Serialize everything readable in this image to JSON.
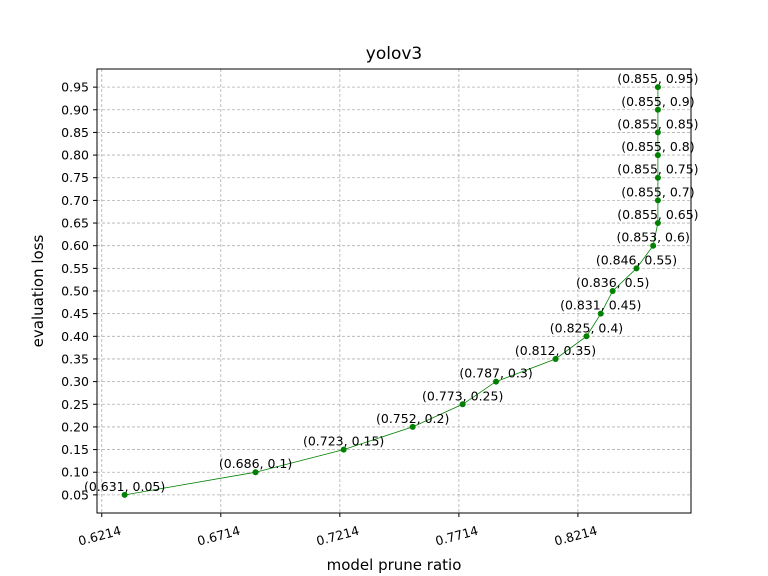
{
  "chart_data": {
    "type": "line",
    "title": "yolov3",
    "xlabel": "model prune ratio",
    "ylabel": "evaluation loss",
    "xlim": [
      0.6194,
      0.8689
    ],
    "ylim": [
      0.01,
      0.99
    ],
    "x_ticks": [
      0.6214,
      0.6714,
      0.7214,
      0.7714,
      0.8214
    ],
    "x_tick_labels": [
      "0.6214",
      "0.6714",
      "0.7214",
      "0.7714",
      "0.8214"
    ],
    "y_ticks": [
      0.05,
      0.1,
      0.15,
      0.2,
      0.25,
      0.3,
      0.35,
      0.4,
      0.45,
      0.5,
      0.55,
      0.6,
      0.65,
      0.7,
      0.75,
      0.8,
      0.85,
      0.9,
      0.95
    ],
    "y_tick_labels": [
      "0.05",
      "0.10",
      "0.15",
      "0.20",
      "0.25",
      "0.30",
      "0.35",
      "0.40",
      "0.45",
      "0.50",
      "0.55",
      "0.60",
      "0.65",
      "0.70",
      "0.75",
      "0.80",
      "0.85",
      "0.90",
      "0.95"
    ],
    "grid": true,
    "color": "#008000",
    "points": [
      {
        "x": 0.631,
        "y": 0.05,
        "label": "(0.631, 0.05)"
      },
      {
        "x": 0.686,
        "y": 0.1,
        "label": "(0.686, 0.1)"
      },
      {
        "x": 0.723,
        "y": 0.15,
        "label": "(0.723, 0.15)"
      },
      {
        "x": 0.752,
        "y": 0.2,
        "label": "(0.752, 0.2)"
      },
      {
        "x": 0.773,
        "y": 0.25,
        "label": "(0.773, 0.25)"
      },
      {
        "x": 0.787,
        "y": 0.3,
        "label": "(0.787, 0.3)"
      },
      {
        "x": 0.812,
        "y": 0.35,
        "label": "(0.812, 0.35)"
      },
      {
        "x": 0.825,
        "y": 0.4,
        "label": "(0.825, 0.4)"
      },
      {
        "x": 0.831,
        "y": 0.45,
        "label": "(0.831, 0.45)"
      },
      {
        "x": 0.836,
        "y": 0.5,
        "label": "(0.836, 0.5)"
      },
      {
        "x": 0.846,
        "y": 0.55,
        "label": "(0.846, 0.55)"
      },
      {
        "x": 0.853,
        "y": 0.6,
        "label": "(0.853, 0.6)"
      },
      {
        "x": 0.855,
        "y": 0.65,
        "label": "(0.855, 0.65)"
      },
      {
        "x": 0.855,
        "y": 0.7,
        "label": "(0.855, 0.7)"
      },
      {
        "x": 0.855,
        "y": 0.75,
        "label": "(0.855, 0.75)"
      },
      {
        "x": 0.855,
        "y": 0.8,
        "label": "(0.855, 0.8)"
      },
      {
        "x": 0.855,
        "y": 0.85,
        "label": "(0.855, 0.85)"
      },
      {
        "x": 0.855,
        "y": 0.9,
        "label": "(0.855, 0.9)"
      },
      {
        "x": 0.855,
        "y": 0.95,
        "label": "(0.855, 0.95)"
      }
    ]
  }
}
